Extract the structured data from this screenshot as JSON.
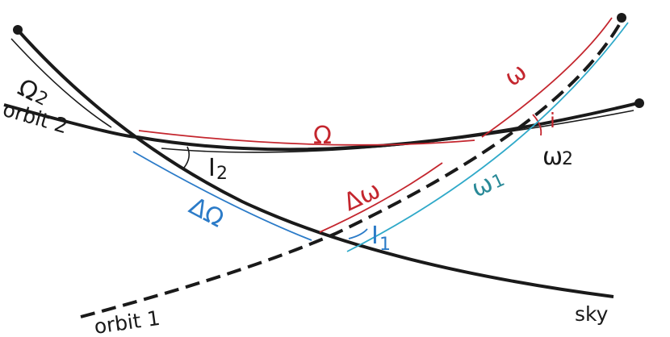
{
  "colors": {
    "ink": "#1a1a1a",
    "red": "#c4262e",
    "blue": "#2b7bc8",
    "teal": "#2a8a98",
    "cyan": "#2fa9c9"
  },
  "labels": {
    "omega2_cap": "Ω",
    "omega2_sub": "2",
    "orbit2": "orbit 2",
    "omega_cap_red": "Ω",
    "omega_red": "ω",
    "i_red": "i",
    "omega_w2": "ω",
    "omega_w2_sub": "2",
    "I2": "I",
    "I2_sub": "2",
    "delta_Omega": "ΔΩ",
    "delta_omega": "Δω",
    "omega_w1": "ω",
    "omega_w1_sub": "1",
    "I1": "I",
    "I1_sub": "1",
    "orbit1": "orbit 1",
    "sky": "sky"
  }
}
